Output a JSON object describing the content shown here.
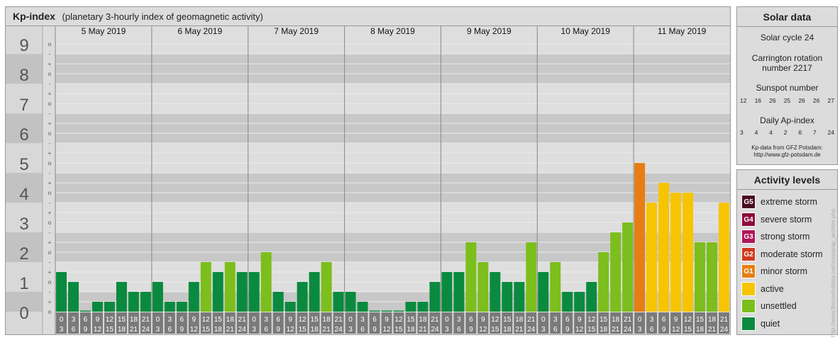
{
  "header": {
    "title": "Kp-index",
    "subtitle": "(planetary 3-hourly index of geomagnetic activity)"
  },
  "chart_data": {
    "type": "bar",
    "title": "Kp-index",
    "subtitle": "(planetary 3-hourly index of geomagnetic activity)",
    "ylim": [
      0,
      9
    ],
    "y_ticks": [
      "0",
      "1",
      "2",
      "3",
      "4",
      "5",
      "6",
      "7",
      "8",
      "9"
    ],
    "minor_ticks": [
      "o",
      "+",
      "-",
      "o",
      "+",
      "-",
      "o",
      "+",
      "-",
      "o",
      "+",
      "-",
      "o",
      "+",
      "-",
      "o",
      "+",
      "-",
      "o",
      "+",
      "-",
      "o",
      "+",
      "-",
      "o",
      "+",
      "-",
      "o"
    ],
    "days": [
      "5 May 2019",
      "6 May 2019",
      "7 May 2019",
      "8 May 2019",
      "9 May 2019",
      "10 May 2019",
      "11 May 2019"
    ],
    "time_top": [
      "0",
      "3",
      "6",
      "9",
      "12",
      "15",
      "18",
      "21"
    ],
    "time_bottom": [
      "3",
      "6",
      "9",
      "12",
      "15",
      "18",
      "21",
      "24"
    ],
    "series": [
      {
        "values": [
          1.333,
          1.0,
          0.0,
          0.333,
          0.333,
          1.0,
          0.667,
          0.667,
          1.0,
          0.333,
          0.333,
          1.0,
          1.667,
          1.333,
          1.667,
          1.333,
          1.333,
          2.0,
          0.667,
          0.333,
          1.0,
          1.333,
          1.667,
          0.667,
          0.667,
          0.333,
          0.0,
          0.0,
          0.0,
          0.333,
          0.333,
          1.0,
          1.333,
          1.333,
          2.333,
          1.667,
          1.333,
          1.0,
          1.0,
          2.333,
          1.333,
          1.667,
          0.667,
          0.667,
          1.0,
          2.0,
          2.667,
          3.0,
          5.0,
          3.667,
          4.333,
          4.0,
          4.0,
          2.333,
          2.333,
          3.667
        ],
        "levels": [
          "quiet",
          "quiet",
          "quiet",
          "quiet",
          "quiet",
          "quiet",
          "quiet",
          "quiet",
          "quiet",
          "quiet",
          "quiet",
          "quiet",
          "unsettled",
          "quiet",
          "unsettled",
          "quiet",
          "quiet",
          "unsettled",
          "quiet",
          "quiet",
          "quiet",
          "quiet",
          "unsettled",
          "quiet",
          "quiet",
          "quiet",
          "quiet",
          "quiet",
          "quiet",
          "quiet",
          "quiet",
          "quiet",
          "quiet",
          "quiet",
          "unsettled",
          "unsettled",
          "quiet",
          "quiet",
          "quiet",
          "unsettled",
          "quiet",
          "unsettled",
          "quiet",
          "quiet",
          "quiet",
          "unsettled",
          "unsettled",
          "unsettled",
          "minor storm",
          "active",
          "active",
          "active",
          "active",
          "unsettled",
          "unsettled",
          "active"
        ]
      }
    ],
    "colors": {
      "quiet": "#0a8a3e",
      "unsettled": "#7cbe1c",
      "active": "#f6c400",
      "minor storm": "#e67e13",
      "moderate storm": "#d13a1d",
      "strong storm": "#b0165a",
      "severe storm": "#8e0a3c",
      "extreme storm": "#4a0a22"
    }
  },
  "solar": {
    "title": "Solar data",
    "cycle": "Solar cycle 24",
    "carrington": "Carrington rotation number 2217",
    "sunspot_label": "Sunspot number",
    "sunspot_values": [
      "12",
      "16",
      "26",
      "25",
      "26",
      "26",
      "27"
    ],
    "ap_label": "Daily Ap-index",
    "ap_values": [
      "3",
      "4",
      "4",
      "2",
      "6",
      "7",
      "24"
    ],
    "note_line1": "Kp-data from GFZ Potsdam:",
    "note_line2": "http://www.gfz-potsdam.de"
  },
  "activity": {
    "title": "Activity levels",
    "levels": [
      {
        "code": "G5",
        "label": "extreme storm",
        "color": "#4a0a22"
      },
      {
        "code": "G4",
        "label": "severe storm",
        "color": "#8e0a3c"
      },
      {
        "code": "G3",
        "label": "strong storm",
        "color": "#b0165a"
      },
      {
        "code": "G2",
        "label": "moderate storm",
        "color": "#d13a1d"
      },
      {
        "code": "G1",
        "label": "minor storm",
        "color": "#e67e13"
      },
      {
        "code": "",
        "label": "active",
        "color": "#f6c400"
      },
      {
        "code": "",
        "label": "unsettled",
        "color": "#7cbe1c"
      },
      {
        "code": "",
        "label": "quiet",
        "color": "#0a8a3e"
      }
    ]
  },
  "credit": "http://www.theusefuldata.net/surpla/ap_archive.php"
}
